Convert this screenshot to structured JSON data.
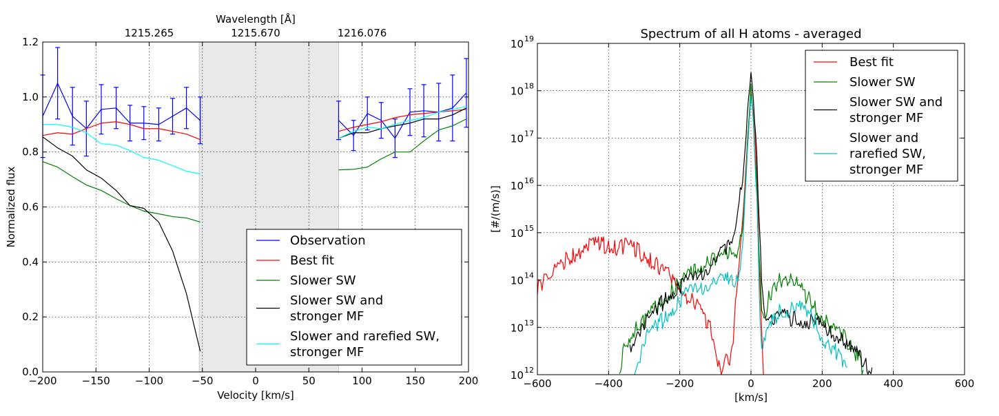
{
  "chart_data": [
    {
      "type": "line",
      "title": "",
      "xlabel": "Velocity [km/s]",
      "ylabel": "Normalized flux",
      "toplabel": "Wavelength [Å]",
      "xlim": [
        -200,
        200
      ],
      "ylim": [
        0.0,
        1.2
      ],
      "xticks": [
        -200,
        -150,
        -100,
        -50,
        0,
        50,
        100,
        150,
        200
      ],
      "xtick_labels": [
        "−200",
        "−150",
        "−100",
        "−50",
        "0",
        "50",
        "100",
        "150",
        "200"
      ],
      "yticks": [
        0.0,
        0.2,
        0.4,
        0.6,
        0.8,
        1.0,
        1.2
      ],
      "ytick_labels": [
        "0.0",
        "0.2",
        "0.4",
        "0.6",
        "0.8",
        "1.0",
        "1.2"
      ],
      "top_ticks": [
        {
          "x": -100,
          "label": "1215.265"
        },
        {
          "x": 0,
          "label": "1215.670"
        },
        {
          "x": 100,
          "label": "1216.076"
        }
      ],
      "shaded_range": [
        -53,
        78
      ],
      "grid": true,
      "legend_position": "lower-right",
      "series": [
        {
          "name": "Observation",
          "color": "#0000ff",
          "segments": [
            {
              "x": [
                -200,
                -186,
                -172,
                -159,
                -145,
                -131,
                -118,
                -105,
                -91,
                -65,
                -52
              ],
              "y": [
                0.93,
                1.05,
                0.93,
                0.885,
                0.955,
                0.96,
                0.905,
                0.905,
                0.9,
                0.96,
                0.915
              ]
            },
            {
              "x": [
                78,
                92,
                105,
                118,
                131,
                145,
                158,
                172,
                185,
                198
              ],
              "y": [
                0.915,
                0.86,
                0.94,
                0.915,
                0.85,
                0.945,
                0.95,
                0.945,
                0.96,
                1.015
              ]
            }
          ],
          "errorbars": {
            "x": [
              -200,
              -186,
              -172,
              -159,
              -145,
              -131,
              -118,
              -105,
              -91,
              -78,
              -65,
              -52,
              78,
              92,
              105,
              118,
              131,
              145,
              158,
              172,
              185,
              198
            ],
            "y": [
              0.93,
              1.05,
              0.93,
              0.885,
              0.955,
              0.96,
              0.905,
              0.905,
              0.9,
              0.93,
              0.96,
              0.915,
              0.915,
              0.86,
              0.94,
              0.915,
              0.85,
              0.945,
              0.95,
              0.945,
              0.96,
              1.015
            ],
            "err": [
              0.15,
              0.13,
              0.105,
              0.1,
              0.09,
              0.075,
              0.065,
              0.06,
              0.06,
              0.065,
              0.075,
              0.085,
              0.07,
              0.055,
              0.06,
              0.065,
              0.07,
              0.085,
              0.095,
              0.105,
              0.12,
              0.125
            ]
          }
        },
        {
          "name": "Best fit",
          "color": "#ff0000",
          "segments": [
            {
              "x": [
                -200,
                -186,
                -172,
                -159,
                -145,
                -131,
                -118,
                -105,
                -91,
                -78,
                -65,
                -52
              ],
              "y": [
                0.86,
                0.87,
                0.865,
                0.885,
                0.905,
                0.91,
                0.9,
                0.885,
                0.885,
                0.875,
                0.865,
                0.845
              ]
            },
            {
              "x": [
                78,
                92,
                105,
                118,
                131,
                145,
                158,
                172,
                185,
                198
              ],
              "y": [
                0.875,
                0.89,
                0.9,
                0.91,
                0.925,
                0.935,
                0.94,
                0.945,
                0.95,
                0.955
              ]
            }
          ]
        },
        {
          "name": "Slower SW",
          "color": "#008000",
          "segments": [
            {
              "x": [
                -200,
                -186,
                -172,
                -159,
                -145,
                -131,
                -118,
                -105,
                -91,
                -78,
                -65,
                -52
              ],
              "y": [
                0.765,
                0.745,
                0.71,
                0.68,
                0.66,
                0.63,
                0.605,
                0.585,
                0.575,
                0.565,
                0.56,
                0.545
              ]
            },
            {
              "x": [
                78,
                92,
                105,
                118,
                131,
                145,
                158,
                172,
                185,
                198
              ],
              "y": [
                0.735,
                0.737,
                0.745,
                0.775,
                0.8,
                0.8,
                0.84,
                0.88,
                0.895,
                0.92
              ]
            }
          ]
        },
        {
          "name": "Slower SW and stronger MF",
          "color": "#000000",
          "segments": [
            {
              "x": [
                -200,
                -186,
                -172,
                -159,
                -145,
                -131,
                -118,
                -105,
                -91,
                -78,
                -65,
                -52
              ],
              "y": [
                0.855,
                0.815,
                0.785,
                0.735,
                0.705,
                0.66,
                0.605,
                0.595,
                0.545,
                0.44,
                0.285,
                0.075
              ]
            },
            {
              "x": [
                78,
                92,
                105,
                118,
                131,
                145,
                158,
                172,
                185,
                198
              ],
              "y": [
                0.85,
                0.87,
                0.87,
                0.885,
                0.895,
                0.905,
                0.92,
                0.92,
                0.935,
                0.96
              ]
            }
          ]
        },
        {
          "name": "Slower and rarefied SW, stronger MF",
          "color": "#00ffff",
          "segments": [
            {
              "x": [
                -200,
                -186,
                -172,
                -159,
                -145,
                -131,
                -118,
                -105,
                -91,
                -78,
                -65,
                -52
              ],
              "y": [
                0.9,
                0.9,
                0.89,
                0.87,
                0.83,
                0.825,
                0.805,
                0.78,
                0.77,
                0.75,
                0.73,
                0.72
              ]
            },
            {
              "x": [
                78,
                92,
                105,
                118,
                131,
                145,
                158,
                172,
                185,
                198
              ],
              "y": [
                0.85,
                0.875,
                0.89,
                0.885,
                0.9,
                0.915,
                0.925,
                0.945,
                0.955,
                0.965
              ]
            }
          ]
        }
      ],
      "legend": [
        {
          "lines": [
            "Observation"
          ],
          "color": "#0000ff"
        },
        {
          "lines": [
            "Best fit"
          ],
          "color": "#ff0000"
        },
        {
          "lines": [
            "Slower SW"
          ],
          "color": "#008000"
        },
        {
          "lines": [
            "Slower SW and",
            "stronger MF"
          ],
          "color": "#000000"
        },
        {
          "lines": [
            "Slower and rarefied SW,",
            "stronger MF"
          ],
          "color": "#00ffff"
        }
      ]
    },
    {
      "type": "line",
      "title": "Spectrum of all H atoms - averaged",
      "xlabel": "[km/s]",
      "ylabel": "[#/(m/s)]",
      "xlim": [
        -600,
        600
      ],
      "ylim_log10": [
        12,
        19
      ],
      "yscale": "log",
      "xticks": [
        -600,
        -400,
        -200,
        0,
        200,
        400,
        600
      ],
      "xtick_labels": [
        "−600",
        "−400",
        "−200",
        "0",
        "200",
        "400",
        "600"
      ],
      "ytick_exponents": [
        12,
        13,
        14,
        15,
        16,
        17,
        18,
        19
      ],
      "ytick_base": "10",
      "grid": true,
      "legend_position": "upper-right",
      "series": [
        {
          "name": "Best fit",
          "color": "#ff0000",
          "x": [
            -600,
            -590,
            -575,
            -560,
            -540,
            -520,
            -500,
            -480,
            -460,
            -440,
            -420,
            -400,
            -380,
            -360,
            -340,
            -320,
            -300,
            -280,
            -260,
            -240,
            -220,
            -200,
            -180,
            -160,
            -140,
            -120,
            -100,
            -90,
            -80,
            -70,
            -60,
            -50,
            -40,
            -30,
            -20,
            -10,
            0,
            10,
            20,
            25,
            30,
            35
          ],
          "log10_y": [
            13.9,
            14.05,
            14.05,
            14.2,
            14.35,
            14.5,
            14.6,
            14.7,
            14.78,
            14.82,
            14.84,
            14.82,
            14.78,
            14.8,
            14.78,
            14.72,
            14.6,
            14.5,
            14.35,
            14.25,
            14.1,
            13.95,
            13.75,
            13.6,
            13.4,
            13.2,
            12.7,
            12.3,
            12.1,
            12.5,
            12.2,
            12.9,
            14.0,
            14.8,
            15.8,
            17.0,
            18.0,
            17.2,
            15.5,
            14.0,
            12.9,
            12.0
          ]
        },
        {
          "name": "Slower SW",
          "color": "#008000",
          "x": [
            -370,
            -360,
            -340,
            -320,
            -300,
            -280,
            -260,
            -240,
            -220,
            -200,
            -180,
            -160,
            -140,
            -120,
            -100,
            -80,
            -60,
            -40,
            -30,
            -20,
            -10,
            0,
            10,
            20,
            30,
            40,
            50,
            60,
            80,
            100,
            120,
            140,
            160,
            180,
            200,
            220,
            240,
            260,
            280,
            300,
            315
          ],
          "log10_y": [
            12.1,
            12.6,
            12.9,
            13.1,
            13.2,
            13.4,
            13.55,
            13.75,
            13.9,
            14.0,
            14.15,
            14.3,
            14.4,
            14.5,
            14.55,
            14.6,
            14.65,
            14.7,
            14.9,
            15.5,
            16.8,
            18.1,
            17.0,
            15.2,
            13.6,
            13.4,
            13.7,
            13.9,
            14.1,
            14.15,
            14.05,
            13.9,
            13.7,
            13.5,
            13.3,
            13.1,
            13.0,
            12.9,
            12.7,
            12.5,
            12.1
          ]
        },
        {
          "name": "Slower SW and stronger MF",
          "color": "#000000",
          "x": [
            -340,
            -320,
            -300,
            -280,
            -260,
            -240,
            -220,
            -200,
            -180,
            -160,
            -140,
            -120,
            -100,
            -80,
            -70,
            -60,
            -50,
            -40,
            -30,
            -20,
            -10,
            0,
            10,
            20,
            30,
            40,
            60,
            80,
            100,
            120,
            140,
            160,
            180,
            200,
            220,
            240,
            260,
            280,
            300,
            320,
            340
          ],
          "log10_y": [
            12.7,
            13.0,
            13.15,
            13.3,
            13.5,
            13.7,
            13.85,
            13.95,
            14.05,
            14.15,
            14.25,
            14.35,
            14.5,
            14.65,
            14.75,
            14.9,
            15.1,
            15.5,
            15.9,
            16.5,
            17.5,
            18.35,
            17.6,
            16.0,
            14.2,
            13.4,
            13.3,
            13.35,
            13.3,
            13.25,
            13.25,
            13.2,
            13.2,
            13.1,
            13.0,
            12.95,
            12.8,
            12.6,
            12.5,
            12.3,
            12.15
          ]
        },
        {
          "name": "Slower and rarefied SW, stronger MF",
          "color": "#00bfbf",
          "x": [
            -330,
            -320,
            -300,
            -280,
            -260,
            -240,
            -220,
            -200,
            -180,
            -160,
            -140,
            -120,
            -100,
            -80,
            -60,
            -40,
            -30,
            -20,
            -10,
            0,
            10,
            20,
            25,
            30,
            40,
            60,
            80,
            100,
            120,
            140,
            160,
            180,
            200,
            220,
            240,
            260,
            270
          ],
          "log10_y": [
            12.1,
            12.3,
            12.8,
            13.0,
            13.15,
            13.3,
            13.5,
            13.65,
            13.8,
            13.9,
            13.95,
            14.0,
            14.05,
            14.05,
            14.1,
            14.1,
            14.3,
            15.2,
            16.8,
            18.0,
            17.0,
            15.0,
            13.5,
            12.5,
            12.9,
            13.2,
            13.4,
            13.45,
            13.5,
            13.5,
            13.4,
            13.2,
            12.9,
            12.7,
            12.55,
            12.35,
            12.15
          ]
        }
      ],
      "legend": [
        {
          "lines": [
            "Best fit"
          ],
          "color": "#ff0000"
        },
        {
          "lines": [
            "Slower SW"
          ],
          "color": "#008000"
        },
        {
          "lines": [
            "Slower SW and",
            "stronger MF"
          ],
          "color": "#000000"
        },
        {
          "lines": [
            "Slower and",
            "rarefied SW,",
            "stronger MF"
          ],
          "color": "#00bfbf"
        }
      ]
    }
  ]
}
